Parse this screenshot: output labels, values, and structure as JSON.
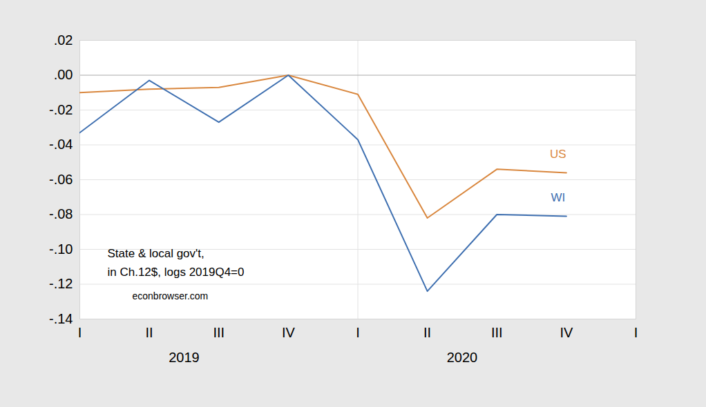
{
  "chart_data": {
    "type": "line",
    "categories": [
      "I",
      "II",
      "III",
      "IV",
      "I",
      "II",
      "III",
      "IV",
      "I"
    ],
    "years": [
      "2019",
      "2019",
      "2019",
      "2019",
      "2020",
      "2020",
      "2020",
      "2020",
      null
    ],
    "series": [
      {
        "name": "US",
        "color": "#d9873e",
        "values": [
          -0.01,
          -0.008,
          -0.007,
          0.0,
          -0.011,
          -0.082,
          -0.054,
          -0.056,
          null
        ]
      },
      {
        "name": "WI",
        "color": "#3e6fb0",
        "values": [
          -0.033,
          -0.003,
          -0.027,
          0.0,
          -0.037,
          -0.124,
          -0.08,
          -0.081,
          null
        ]
      }
    ],
    "ylim": [
      -0.14,
      0.02
    ],
    "yticks": [
      {
        "value": 0.02,
        "label": ".02"
      },
      {
        "value": 0,
        "label": ".00"
      },
      {
        "value": -0.02,
        "label": "-.02"
      },
      {
        "value": -0.04,
        "label": "-.04"
      },
      {
        "value": -0.06,
        "label": "-.06"
      },
      {
        "value": -0.08,
        "label": "-.08"
      },
      {
        "value": -0.1,
        "label": "-.10"
      },
      {
        "value": -0.12,
        "label": "-.12"
      },
      {
        "value": -0.14,
        "label": "-.14"
      }
    ],
    "grid": true,
    "annotations": [
      "State & local gov't,",
      "in Ch.12$, logs 2019Q4=0"
    ],
    "source": "econbrowser.com"
  }
}
